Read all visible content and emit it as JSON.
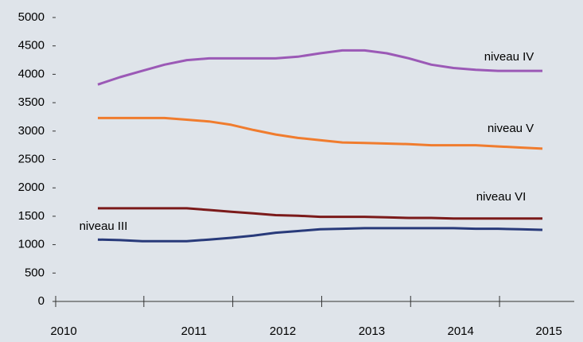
{
  "chart_data": {
    "type": "line",
    "categories": [
      "2010",
      null,
      null,
      null,
      "2011",
      null,
      null,
      null,
      "2012",
      null,
      null,
      null,
      "2013",
      null,
      null,
      null,
      "2014",
      null,
      null,
      null,
      "2015"
    ],
    "series": [
      {
        "name": "niveau IV",
        "color": "#9b59b6",
        "values": [
          3820,
          3950,
          4060,
          4170,
          4250,
          4280,
          4280,
          4280,
          4280,
          4310,
          4370,
          4420,
          4420,
          4370,
          4280,
          4170,
          4110,
          4080,
          4060,
          4060,
          4060
        ]
      },
      {
        "name": "niveau V",
        "color": "#f07c2e",
        "values": [
          3230,
          3230,
          3230,
          3230,
          3200,
          3170,
          3110,
          3020,
          2940,
          2880,
          2840,
          2800,
          2790,
          2780,
          2770,
          2750,
          2750,
          2750,
          2730,
          2710,
          2690
        ]
      },
      {
        "name": "niveau VI",
        "color": "#7b1a1a",
        "values": [
          1640,
          1640,
          1640,
          1640,
          1640,
          1610,
          1580,
          1550,
          1520,
          1510,
          1490,
          1490,
          1490,
          1480,
          1470,
          1470,
          1460,
          1460,
          1460,
          1460,
          1460
        ]
      },
      {
        "name": "niveau III",
        "color": "#283a7a",
        "values": [
          1090,
          1080,
          1060,
          1060,
          1060,
          1090,
          1120,
          1160,
          1210,
          1240,
          1270,
          1280,
          1290,
          1290,
          1290,
          1290,
          1290,
          1280,
          1280,
          1270,
          1260
        ]
      }
    ],
    "ylim": [
      0,
      5000
    ],
    "yticks": [
      0,
      500,
      1000,
      1500,
      2000,
      2500,
      3000,
      3500,
      4000,
      4500,
      5000
    ],
    "grid": false
  }
}
